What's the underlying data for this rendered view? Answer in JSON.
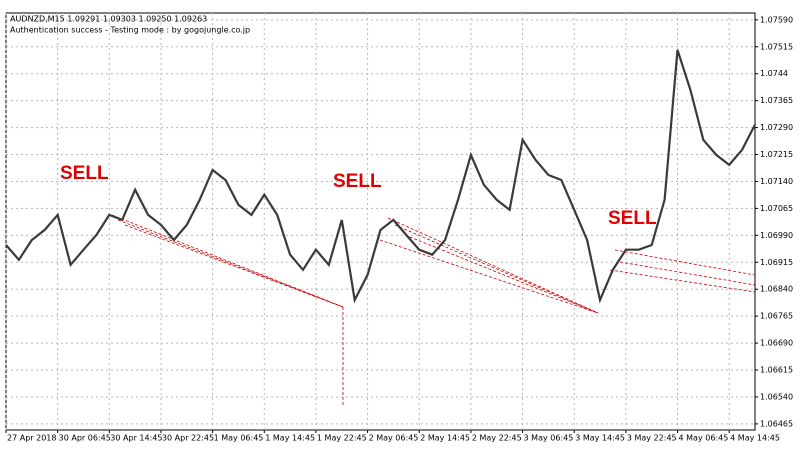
{
  "chart_data": {
    "type": "line",
    "title": "AUDNZD,M15  1.09291 1.09303 1.09250 1.09263",
    "subtitle": "Authentication success - Testing mode : by gogojungle.co.jp",
    "annotations": [
      "SELL",
      "SELL",
      "SELL"
    ],
    "categories": [
      "27 Apr 2018",
      null,
      null,
      null,
      "30 Apr 06:45",
      null,
      null,
      null,
      "30 Apr 14:45",
      null,
      null,
      null,
      "30 Apr 22:45",
      null,
      null,
      null,
      "1 May 06:45",
      null,
      null,
      null,
      "1 May 14:45",
      null,
      null,
      null,
      "1 May 22:45",
      null,
      null,
      null,
      "2 May 06:45",
      null,
      null,
      null,
      "2 May 14:45",
      null,
      null,
      null,
      "2 May 22:45",
      null,
      null,
      null,
      "3 May 06:45",
      null,
      null,
      null,
      "3 May 14:45",
      null,
      null,
      null,
      "3 May 22:45",
      null,
      null,
      null,
      "4 May 06:45",
      null,
      null,
      null,
      "4 May 14:45",
      null,
      null
    ],
    "values": [
      1.06963,
      1.06922,
      1.06977,
      1.07005,
      1.07047,
      1.06908,
      1.0695,
      1.06991,
      1.07047,
      1.07033,
      1.07117,
      1.07047,
      1.07019,
      1.06977,
      1.07019,
      1.07089,
      1.07172,
      1.07144,
      1.07075,
      1.07047,
      1.07103,
      1.07047,
      1.06936,
      1.06894,
      1.0695,
      1.06908,
      1.07033,
      1.0681,
      1.0688,
      1.07005,
      1.07033,
      1.06991,
      1.0695,
      1.06936,
      1.06977,
      1.07089,
      1.07214,
      1.07131,
      1.07089,
      1.07061,
      1.07256,
      1.072,
      1.07158,
      1.07144,
      1.07061,
      1.06977,
      1.0681,
      1.06894,
      1.0695,
      1.0695,
      1.06963,
      1.07089,
      1.07506,
      1.07395,
      1.07256,
      1.07214,
      1.07186,
      1.07228,
      1.07298
    ],
    "color": "#3a3a3a",
    "ylim": [
      1.06448,
      1.07609
    ],
    "yticks": [
      {
        "value": 1.0759,
        "label": "1.07590"
      },
      1.07515,
      1.0744,
      1.07365,
      {
        "value": 1.0729,
        "label": "1.07290"
      },
      1.07215,
      {
        "value": 1.0714,
        "label": "1.07140"
      },
      1.07065,
      {
        "value": 1.0699,
        "label": "1.06990"
      },
      1.06915,
      {
        "value": 1.0684,
        "label": "1.06840"
      },
      1.06765,
      {
        "value": 1.0669,
        "label": "1.06690"
      },
      1.06615,
      {
        "value": 1.0654,
        "label": "1.06540"
      },
      1.06465
    ],
    "grid": true
  }
}
